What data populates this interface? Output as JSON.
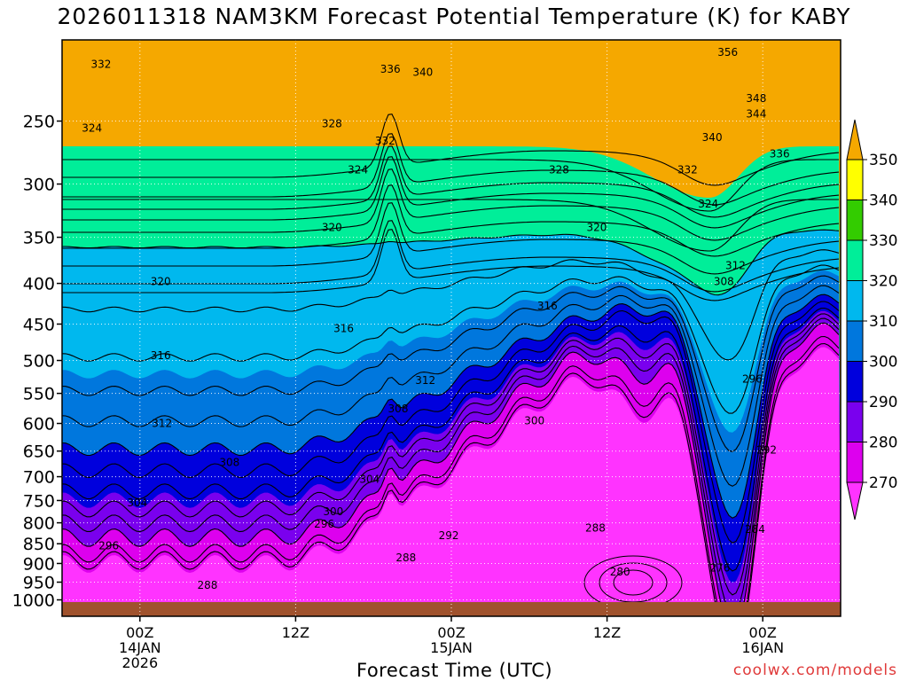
{
  "title": "2026011318 NAM3KM Forecast Potential Temperature (K) for KABY",
  "credit": "coolwx.com/models",
  "chart_data": {
    "type": "contour",
    "title": "2026011318 NAM3KM Forecast Potential Temperature (K) for KABY",
    "xlabel": "Forecast Time (UTC)",
    "ylabel": "",
    "y_ticks": [
      250,
      300,
      350,
      400,
      450,
      500,
      550,
      600,
      650,
      700,
      750,
      800,
      850,
      900,
      950,
      1000
    ],
    "y_scale": "log (pressure, hPa)",
    "ylim": [
      1000,
      200
    ],
    "x_ticks": [
      {
        "hour": 6,
        "lines": [
          "00Z",
          "14JAN",
          "2026"
        ]
      },
      {
        "hour": 18,
        "lines": [
          "12Z"
        ]
      },
      {
        "hour": 30,
        "lines": [
          "00Z",
          "15JAN"
        ]
      },
      {
        "hour": 42,
        "lines": [
          "12Z"
        ]
      },
      {
        "hour": 54,
        "lines": [
          "00Z",
          "16JAN"
        ]
      }
    ],
    "xlim": [
      0,
      60
    ],
    "grid": true,
    "colorbar": {
      "labels": [
        "350",
        "340",
        "330",
        "320",
        "310",
        "300",
        "290",
        "280",
        "270"
      ],
      "colors": [
        "#f5a800",
        "#ffff00",
        "#33cc00",
        "#00ee99",
        "#00b8ee",
        "#0077dd",
        "#0000dd",
        "#7a00ee",
        "#dd00ee",
        "#ff33ff"
      ]
    },
    "isotherm_interval_K": 4,
    "contour_labels": [
      {
        "text": "332",
        "hour": 3,
        "p": 212
      },
      {
        "text": "336",
        "hour": 25.3,
        "p": 215
      },
      {
        "text": "340",
        "hour": 27.8,
        "p": 217
      },
      {
        "text": "356",
        "hour": 51.3,
        "p": 205
      },
      {
        "text": "324",
        "hour": 2.3,
        "p": 255
      },
      {
        "text": "328",
        "hour": 20.8,
        "p": 252
      },
      {
        "text": "332",
        "hour": 24.9,
        "p": 265
      },
      {
        "text": "348",
        "hour": 53.5,
        "p": 234
      },
      {
        "text": "344",
        "hour": 53.5,
        "p": 245
      },
      {
        "text": "340",
        "hour": 50.1,
        "p": 262
      },
      {
        "text": "336",
        "hour": 55.3,
        "p": 275
      },
      {
        "text": "324",
        "hour": 22.8,
        "p": 288
      },
      {
        "text": "328",
        "hour": 38.3,
        "p": 288
      },
      {
        "text": "332",
        "hour": 48.2,
        "p": 288
      },
      {
        "text": "324",
        "hour": 49.8,
        "p": 318
      },
      {
        "text": "320",
        "hour": 20.8,
        "p": 340
      },
      {
        "text": "320",
        "hour": 41.2,
        "p": 340
      },
      {
        "text": "312",
        "hour": 51.9,
        "p": 380
      },
      {
        "text": "320",
        "hour": 7.6,
        "p": 398
      },
      {
        "text": "308",
        "hour": 51.0,
        "p": 398
      },
      {
        "text": "316",
        "hour": 37.4,
        "p": 427
      },
      {
        "text": "316",
        "hour": 21.7,
        "p": 456
      },
      {
        "text": "316",
        "hour": 7.6,
        "p": 493
      },
      {
        "text": "312",
        "hour": 28.0,
        "p": 530
      },
      {
        "text": "296",
        "hour": 53.2,
        "p": 528
      },
      {
        "text": "308",
        "hour": 25.9,
        "p": 575
      },
      {
        "text": "300",
        "hour": 36.4,
        "p": 595
      },
      {
        "text": "312",
        "hour": 7.7,
        "p": 600
      },
      {
        "text": "292",
        "hour": 54.3,
        "p": 648
      },
      {
        "text": "308",
        "hour": 12.9,
        "p": 672
      },
      {
        "text": "304",
        "hour": 23.7,
        "p": 705
      },
      {
        "text": "304",
        "hour": 5.8,
        "p": 755
      },
      {
        "text": "300",
        "hour": 20.9,
        "p": 775
      },
      {
        "text": "296",
        "hour": 20.2,
        "p": 803
      },
      {
        "text": "292",
        "hour": 29.8,
        "p": 830
      },
      {
        "text": "288",
        "hour": 41.1,
        "p": 812
      },
      {
        "text": "284",
        "hour": 53.4,
        "p": 815
      },
      {
        "text": "296",
        "hour": 3.6,
        "p": 855
      },
      {
        "text": "288",
        "hour": 26.5,
        "p": 885
      },
      {
        "text": "280",
        "hour": 43.0,
        "p": 922
      },
      {
        "text": "276",
        "hour": 50.7,
        "p": 912
      },
      {
        "text": "288",
        "hour": 11.2,
        "p": 958
      }
    ]
  }
}
